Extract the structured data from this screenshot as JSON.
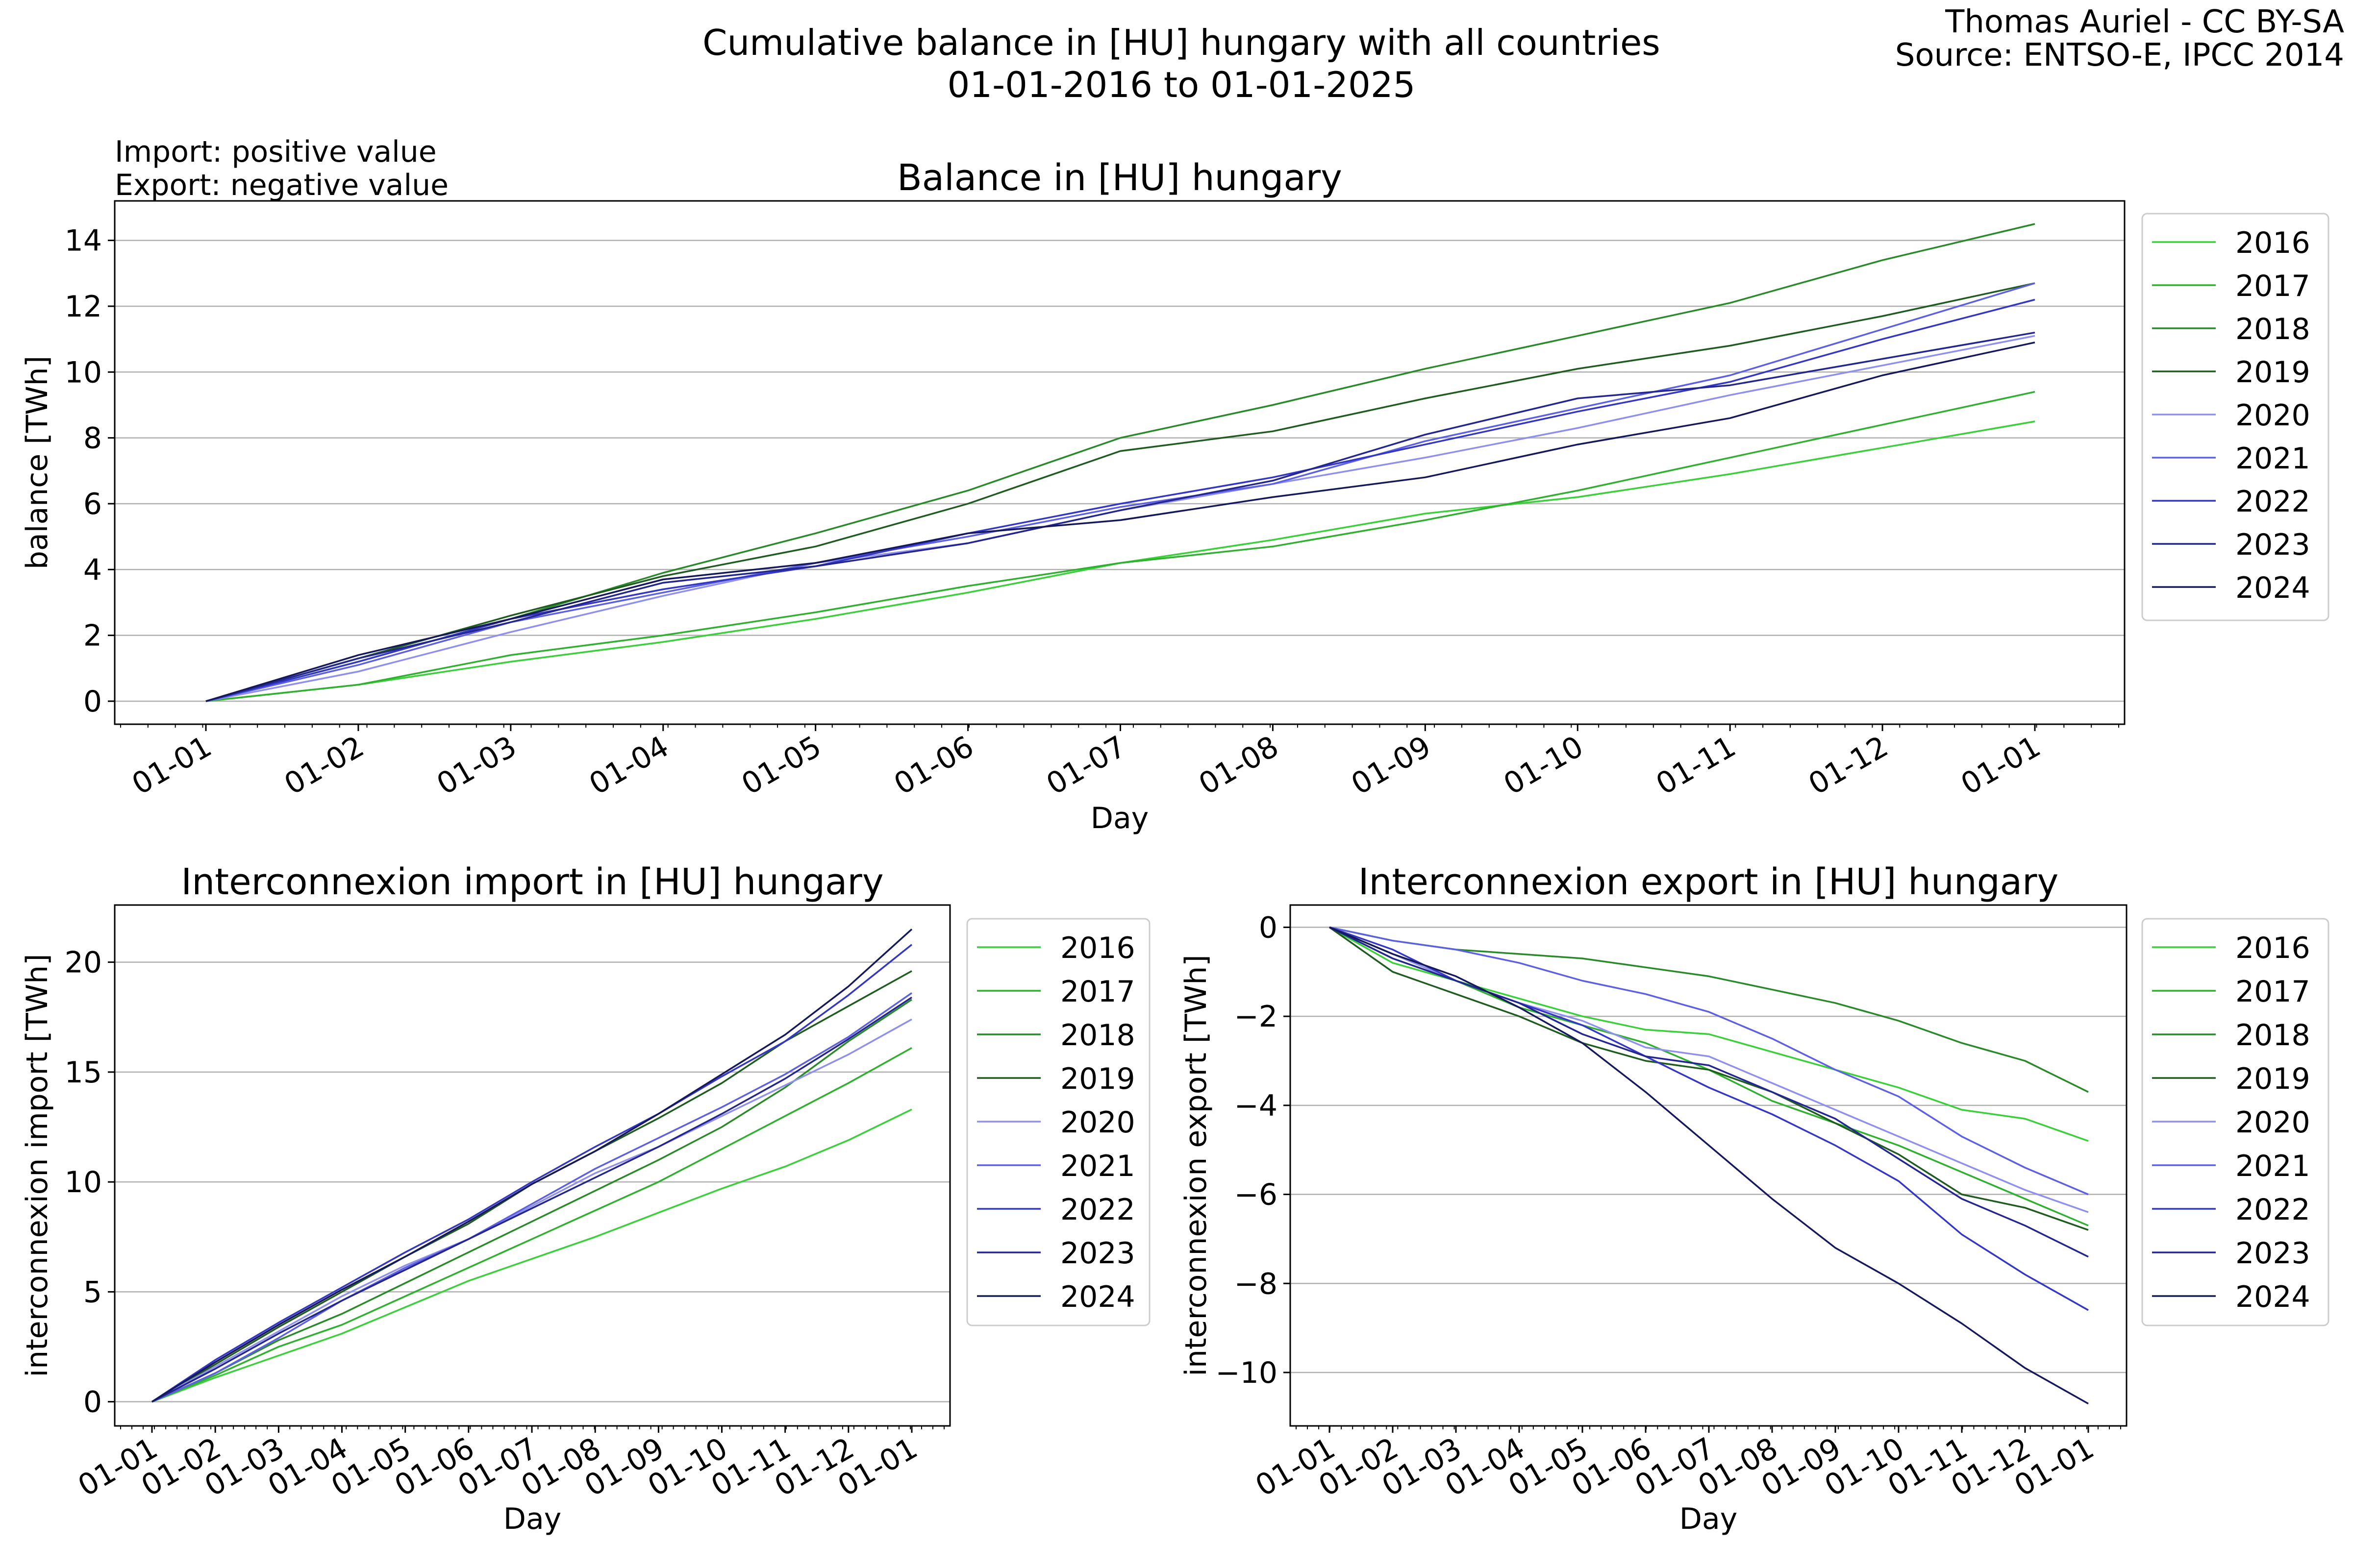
{
  "figure": {
    "title_line1": "Cumulative balance in [HU] hungary with all countries",
    "title_line2": "01-01-2016 to 01-01-2025",
    "credit_line1": "Thomas Auriel - CC BY-SA",
    "credit_line2": "Source: ENTSO-E, IPCC 2014",
    "note_line1": "Import: positive value",
    "note_line2": "Export: negative value"
  },
  "colors": {
    "2016": "#39d039",
    "2017": "#2fb02f",
    "2018": "#288a28",
    "2019": "#1f5c1f",
    "2020": "#8f90ee",
    "2021": "#5d60e3",
    "2022": "#3437c5",
    "2023": "#242690",
    "2024": "#16185c"
  },
  "chart_data": [
    {
      "id": "balance",
      "type": "line",
      "title": "Balance in [HU] hungary",
      "xlabel": "Day",
      "ylabel": "balance [TWh]",
      "xtick_labels": [
        "01-01",
        "01-02",
        "01-03",
        "01-04",
        "01-05",
        "01-06",
        "01-07",
        "01-08",
        "01-09",
        "01-10",
        "01-11",
        "01-12",
        "01-01"
      ],
      "ylim": [
        -0.7,
        15.2
      ],
      "yticks": [
        0,
        2,
        4,
        6,
        8,
        10,
        12,
        14
      ],
      "grid": "y",
      "legend_position": "outside-right",
      "x": [
        "01-01",
        "01-02",
        "01-03",
        "01-04",
        "01-05",
        "01-06",
        "01-07",
        "01-08",
        "01-09",
        "01-10",
        "01-11",
        "01-12",
        "01-01"
      ],
      "series": [
        {
          "name": "2016",
          "values": [
            0,
            0.5,
            1.2,
            1.8,
            2.5,
            3.3,
            4.2,
            4.9,
            5.7,
            6.2,
            6.9,
            7.7,
            8.5
          ]
        },
        {
          "name": "2017",
          "values": [
            0,
            0.5,
            1.4,
            2.0,
            2.7,
            3.5,
            4.2,
            4.7,
            5.5,
            6.4,
            7.4,
            8.4,
            9.4
          ]
        },
        {
          "name": "2018",
          "values": [
            0,
            1.2,
            2.5,
            3.9,
            5.1,
            6.4,
            8.0,
            9.0,
            10.1,
            11.1,
            12.1,
            13.4,
            14.5
          ]
        },
        {
          "name": "2019",
          "values": [
            0,
            1.3,
            2.6,
            3.8,
            4.7,
            6.0,
            7.6,
            8.2,
            9.2,
            10.1,
            10.8,
            11.7,
            12.7
          ]
        },
        {
          "name": "2020",
          "values": [
            0,
            0.9,
            2.1,
            3.2,
            4.2,
            4.8,
            5.8,
            6.6,
            7.4,
            8.3,
            9.3,
            10.2,
            11.1
          ]
        },
        {
          "name": "2021",
          "values": [
            0,
            1.1,
            2.4,
            3.3,
            4.2,
            5.0,
            5.9,
            6.6,
            7.9,
            8.9,
            9.9,
            11.3,
            12.7
          ]
        },
        {
          "name": "2022",
          "values": [
            0,
            1.2,
            2.5,
            3.4,
            4.1,
            5.1,
            6.0,
            6.8,
            7.8,
            8.8,
            9.7,
            11.0,
            12.2
          ]
        },
        {
          "name": "2023",
          "values": [
            0,
            1.3,
            2.4,
            3.6,
            4.1,
            4.8,
            5.8,
            6.7,
            8.1,
            9.2,
            9.6,
            10.4,
            11.2
          ]
        },
        {
          "name": "2024",
          "values": [
            0,
            1.4,
            2.5,
            3.7,
            4.2,
            5.1,
            5.5,
            6.2,
            6.8,
            7.8,
            8.6,
            9.9,
            10.9
          ]
        }
      ]
    },
    {
      "id": "import",
      "type": "line",
      "title": "Interconnexion import in [HU] hungary",
      "xlabel": "Day",
      "ylabel": "interconnexion import [TWh]",
      "xtick_labels": [
        "01-01",
        "01-02",
        "01-03",
        "01-04",
        "01-05",
        "01-06",
        "01-07",
        "01-08",
        "01-09",
        "01-10",
        "01-11",
        "01-12",
        "01-01"
      ],
      "ylim": [
        -1.1,
        22.6
      ],
      "yticks": [
        0,
        5,
        10,
        15,
        20
      ],
      "grid": "y",
      "legend_position": "outside-right",
      "x": [
        "01-01",
        "01-02",
        "01-03",
        "01-04",
        "01-05",
        "01-06",
        "01-07",
        "01-08",
        "01-09",
        "01-10",
        "01-11",
        "01-12",
        "01-01"
      ],
      "series": [
        {
          "name": "2016",
          "values": [
            0,
            1.1,
            2.1,
            3.1,
            4.3,
            5.5,
            6.5,
            7.5,
            8.6,
            9.7,
            10.7,
            11.9,
            13.3
          ]
        },
        {
          "name": "2017",
          "values": [
            0,
            1.2,
            2.5,
            3.5,
            4.8,
            6.1,
            7.4,
            8.7,
            10.0,
            11.5,
            13.0,
            14.5,
            16.1
          ]
        },
        {
          "name": "2018",
          "values": [
            0,
            1.3,
            2.8,
            4.0,
            5.4,
            6.8,
            8.2,
            9.6,
            11.0,
            12.5,
            14.3,
            16.4,
            18.3
          ]
        },
        {
          "name": "2019",
          "values": [
            0,
            1.7,
            3.4,
            5.0,
            6.6,
            8.1,
            9.9,
            11.4,
            12.9,
            14.5,
            16.4,
            18.0,
            19.6
          ]
        },
        {
          "name": "2020",
          "values": [
            0,
            1.6,
            3.2,
            4.8,
            6.2,
            7.4,
            8.9,
            10.4,
            11.6,
            13.0,
            14.4,
            15.8,
            17.4
          ]
        },
        {
          "name": "2021",
          "values": [
            0,
            1.3,
            2.9,
            4.6,
            6.1,
            7.4,
            9.0,
            10.6,
            12.0,
            13.4,
            14.9,
            16.6,
            18.6
          ]
        },
        {
          "name": "2022",
          "values": [
            0,
            1.9,
            3.6,
            5.2,
            6.8,
            8.3,
            10.0,
            11.6,
            13.1,
            14.8,
            16.4,
            18.5,
            20.8
          ]
        },
        {
          "name": "2023",
          "values": [
            0,
            1.5,
            3.1,
            4.6,
            6.0,
            7.4,
            8.8,
            10.2,
            11.6,
            13.1,
            14.7,
            16.5,
            18.4
          ]
        },
        {
          "name": "2024",
          "values": [
            0,
            1.8,
            3.5,
            5.1,
            6.6,
            8.2,
            9.9,
            11.4,
            13.1,
            14.9,
            16.7,
            18.9,
            21.5
          ]
        }
      ]
    },
    {
      "id": "export",
      "type": "line",
      "title": "Interconnexion export in [HU] hungary",
      "xlabel": "Day",
      "ylabel": "interconnexion export [TWh]",
      "xtick_labels": [
        "01-01",
        "01-02",
        "01-03",
        "01-04",
        "01-05",
        "01-06",
        "01-07",
        "01-08",
        "01-09",
        "01-10",
        "01-11",
        "01-12",
        "01-01"
      ],
      "ylim": [
        -11.2,
        0.5
      ],
      "yticks": [
        0,
        -2,
        -4,
        -6,
        -8,
        -10
      ],
      "grid": "y",
      "legend_position": "outside-right",
      "x": [
        "01-01",
        "01-02",
        "01-03",
        "01-04",
        "01-05",
        "01-06",
        "01-07",
        "01-08",
        "01-09",
        "01-10",
        "01-11",
        "01-12",
        "01-01"
      ],
      "series": [
        {
          "name": "2016",
          "values": [
            0,
            -0.8,
            -1.2,
            -1.6,
            -2.0,
            -2.3,
            -2.4,
            -2.8,
            -3.2,
            -3.6,
            -4.1,
            -4.3,
            -4.8
          ]
        },
        {
          "name": "2017",
          "values": [
            0,
            -0.7,
            -1.2,
            -1.8,
            -2.2,
            -2.6,
            -3.2,
            -3.9,
            -4.4,
            -4.9,
            -5.5,
            -6.1,
            -6.7
          ]
        },
        {
          "name": "2018",
          "values": [
            0,
            -0.3,
            -0.5,
            -0.6,
            -0.7,
            -0.9,
            -1.1,
            -1.4,
            -1.7,
            -2.1,
            -2.6,
            -3.0,
            -3.7
          ]
        },
        {
          "name": "2019",
          "values": [
            0,
            -1.0,
            -1.5,
            -2.0,
            -2.6,
            -3.0,
            -3.2,
            -3.7,
            -4.4,
            -5.1,
            -6.0,
            -6.3,
            -6.8
          ]
        },
        {
          "name": "2020",
          "values": [
            0,
            -0.6,
            -1.2,
            -1.7,
            -2.1,
            -2.7,
            -2.9,
            -3.5,
            -4.1,
            -4.7,
            -5.3,
            -5.9,
            -6.4
          ]
        },
        {
          "name": "2021",
          "values": [
            0,
            -0.3,
            -0.5,
            -0.8,
            -1.2,
            -1.5,
            -1.9,
            -2.5,
            -3.2,
            -3.8,
            -4.7,
            -5.4,
            -6.0
          ]
        },
        {
          "name": "2022",
          "values": [
            0,
            -0.5,
            -1.2,
            -1.7,
            -2.2,
            -2.9,
            -3.6,
            -4.2,
            -4.9,
            -5.7,
            -6.9,
            -7.8,
            -8.6
          ]
        },
        {
          "name": "2023",
          "values": [
            0,
            -0.7,
            -1.2,
            -1.7,
            -2.4,
            -2.9,
            -3.1,
            -3.7,
            -4.3,
            -5.2,
            -6.1,
            -6.7,
            -7.4
          ]
        },
        {
          "name": "2024",
          "values": [
            0,
            -0.6,
            -1.1,
            -1.8,
            -2.6,
            -3.7,
            -4.9,
            -6.1,
            -7.2,
            -8.0,
            -8.9,
            -9.9,
            -10.7
          ]
        }
      ]
    }
  ]
}
